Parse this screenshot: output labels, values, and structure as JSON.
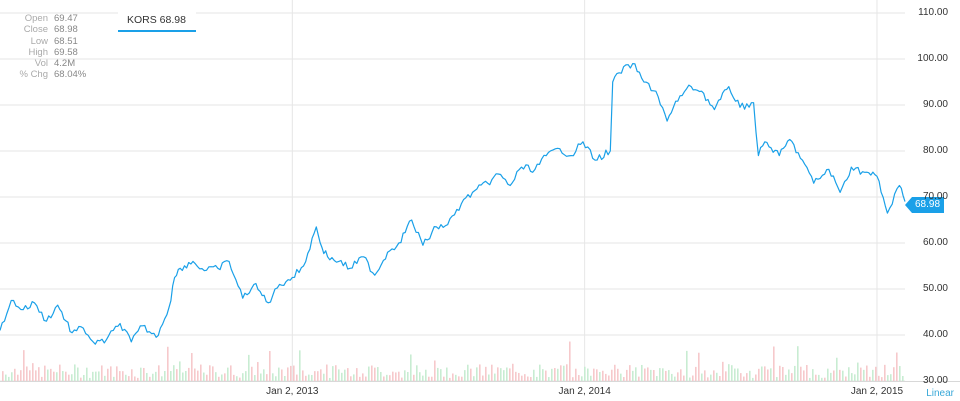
{
  "stats": [
    {
      "label": "Open",
      "value": "69.47"
    },
    {
      "label": "Close",
      "value": "68.98"
    },
    {
      "label": "Low",
      "value": "68.51"
    },
    {
      "label": "High",
      "value": "69.58"
    },
    {
      "label": "Vol",
      "value": "4.2M"
    },
    {
      "label": "% Chg",
      "value": "68.04%"
    }
  ],
  "ticker_tab": "KORS 68.98",
  "price_flag": "68.98",
  "scale_label": "Linear",
  "colors": {
    "line": "#1aa0e8",
    "grid": "#e6e6e6",
    "vol_up": "#c8ecd2",
    "vol_down": "#f6c9cb"
  },
  "chart_data": {
    "type": "line",
    "series": [
      {
        "name": "KORS",
        "x": [
          "2012-01-03",
          "2012-01-17",
          "2012-02-01",
          "2012-02-15",
          "2012-03-01",
          "2012-03-15",
          "2012-04-02",
          "2012-04-16",
          "2012-05-01",
          "2012-05-15",
          "2012-06-01",
          "2012-06-15",
          "2012-06-29",
          "2012-07-16",
          "2012-08-01",
          "2012-08-08",
          "2012-08-15",
          "2012-08-31",
          "2012-09-14",
          "2012-10-01",
          "2012-10-15",
          "2012-11-01",
          "2012-11-15",
          "2012-12-03",
          "2012-12-17",
          "2013-01-02",
          "2013-01-16",
          "2013-02-01",
          "2013-02-08",
          "2013-02-15",
          "2013-03-01",
          "2013-03-15",
          "2013-04-01",
          "2013-04-15",
          "2013-05-01",
          "2013-05-15",
          "2013-05-31",
          "2013-06-14",
          "2013-07-01",
          "2013-07-15",
          "2013-08-01",
          "2013-08-15",
          "2013-09-03",
          "2013-09-16",
          "2013-10-01",
          "2013-10-15",
          "2013-11-01",
          "2013-11-15",
          "2013-12-02",
          "2013-12-16",
          "2013-12-31",
          "2014-01-15",
          "2014-02-03",
          "2014-02-06",
          "2014-02-14",
          "2014-03-03",
          "2014-03-17",
          "2014-04-01",
          "2014-04-15",
          "2014-05-01",
          "2014-05-15",
          "2014-05-28",
          "2014-06-13",
          "2014-07-01",
          "2014-07-15",
          "2014-08-01",
          "2014-08-07",
          "2014-08-15",
          "2014-09-02",
          "2014-09-15",
          "2014-10-01",
          "2014-10-15",
          "2014-11-03",
          "2014-11-17",
          "2014-12-01",
          "2014-12-15",
          "2015-01-02",
          "2015-01-15",
          "2015-01-30",
          "2015-02-06"
        ],
        "values": [
          41.0,
          47.5,
          45.5,
          47.0,
          43.0,
          46.5,
          40.5,
          41.5,
          38.0,
          39.0,
          42.5,
          38.5,
          42.0,
          39.5,
          46.0,
          52.5,
          54.5,
          56.0,
          54.0,
          54.5,
          56.0,
          48.0,
          51.0,
          47.0,
          51.0,
          52.5,
          55.0,
          63.5,
          59.0,
          57.0,
          56.0,
          54.5,
          57.0,
          53.0,
          58.0,
          60.0,
          65.0,
          59.5,
          63.5,
          64.0,
          68.5,
          71.0,
          73.0,
          75.0,
          72.5,
          76.5,
          76.0,
          79.0,
          80.5,
          79.0,
          82.0,
          78.0,
          80.0,
          95.0,
          97.0,
          99.0,
          95.0,
          93.0,
          86.5,
          92.0,
          94.0,
          93.0,
          89.0,
          94.0,
          89.5,
          90.5,
          79.0,
          82.0,
          79.0,
          82.5,
          78.0,
          73.0,
          76.0,
          71.0,
          76.5,
          75.5,
          74.5,
          66.5,
          72.5,
          69.0
        ]
      }
    ],
    "xticks": [
      {
        "date": "2013-01-02",
        "label": "Jan 2, 2013"
      },
      {
        "date": "2014-01-02",
        "label": "Jan 2, 2014"
      },
      {
        "date": "2015-01-02",
        "label": "Jan 2, 2015"
      }
    ],
    "yticks": [
      "30.00",
      "40.00",
      "50.00",
      "60.00",
      "70.00",
      "80.00",
      "90.00",
      "100.00",
      "110.00"
    ],
    "ylim": [
      30,
      110
    ],
    "xlim": [
      "2012-01-03",
      "2015-02-06"
    ],
    "grid": true,
    "scale": "linear",
    "volume_shown": true
  }
}
